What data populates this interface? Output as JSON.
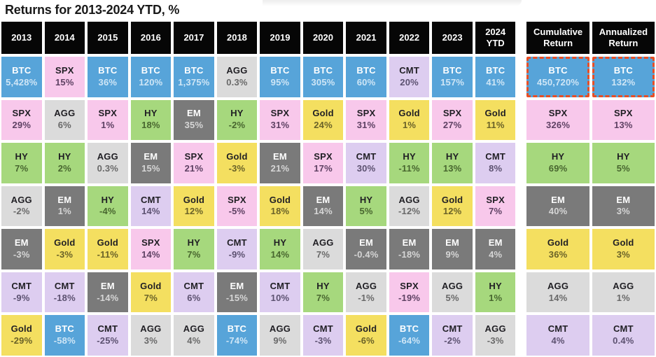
{
  "title": "Returns for 2013-2024 YTD, %",
  "accent": {
    "highlight_border": "#e84e25",
    "header_bg": "#060606",
    "header_text": "#ffffff"
  },
  "assets": {
    "BTC": {
      "bg": "#57a4d9",
      "label_color": "#ffffff",
      "value_color": "#cfe6f6"
    },
    "SPX": {
      "bg": "#f8c8eb",
      "label_color": "#201f24",
      "value_color": "#5e4163"
    },
    "HY": {
      "bg": "#a6d87d",
      "label_color": "#201f24",
      "value_color": "#48662f"
    },
    "AGG": {
      "bg": "#dbdbdb",
      "label_color": "#201f24",
      "value_color": "#696969"
    },
    "EM": {
      "bg": "#7a7a7a",
      "label_color": "#ffffff",
      "value_color": "#d6d6d6"
    },
    "Gold": {
      "bg": "#f4df60",
      "label_color": "#201f24",
      "value_color": "#6a6228"
    },
    "CMT": {
      "bg": "#ddcdf0",
      "label_color": "#201f24",
      "value_color": "#5c5170"
    }
  },
  "chart_data": {
    "type": "table",
    "title": "Returns for 2013-2024 YTD, %",
    "columns": [
      "2013",
      "2014",
      "2015",
      "2016",
      "2017",
      "2018",
      "2019",
      "2020",
      "2021",
      "2022",
      "2023",
      "2024 YTD",
      "Cumulative Return",
      "Annualized Return"
    ],
    "highlight": {
      "row": 0,
      "columns": [
        "Cumulative Return",
        "Annualized Return"
      ],
      "style": "dashed-red-outline"
    },
    "rows": [
      [
        {
          "asset": "BTC",
          "return": "5,428%"
        },
        {
          "asset": "SPX",
          "return": "15%"
        },
        {
          "asset": "BTC",
          "return": "36%"
        },
        {
          "asset": "BTC",
          "return": "120%"
        },
        {
          "asset": "BTC",
          "return": "1,375%"
        },
        {
          "asset": "AGG",
          "return": "0.3%"
        },
        {
          "asset": "BTC",
          "return": "95%"
        },
        {
          "asset": "BTC",
          "return": "305%"
        },
        {
          "asset": "BTC",
          "return": "60%"
        },
        {
          "asset": "CMT",
          "return": "20%"
        },
        {
          "asset": "BTC",
          "return": "157%"
        },
        {
          "asset": "BTC",
          "return": "41%"
        },
        {
          "asset": "BTC",
          "return": "450,720%"
        },
        {
          "asset": "BTC",
          "return": "132%"
        }
      ],
      [
        {
          "asset": "SPX",
          "return": "29%"
        },
        {
          "asset": "AGG",
          "return": "6%"
        },
        {
          "asset": "SPX",
          "return": "1%"
        },
        {
          "asset": "HY",
          "return": "18%"
        },
        {
          "asset": "EM",
          "return": "35%"
        },
        {
          "asset": "HY",
          "return": "-2%"
        },
        {
          "asset": "SPX",
          "return": "31%"
        },
        {
          "asset": "Gold",
          "return": "24%"
        },
        {
          "asset": "SPX",
          "return": "31%"
        },
        {
          "asset": "Gold",
          "return": "1%"
        },
        {
          "asset": "SPX",
          "return": "27%"
        },
        {
          "asset": "Gold",
          "return": "11%"
        },
        {
          "asset": "SPX",
          "return": "326%"
        },
        {
          "asset": "SPX",
          "return": "13%"
        }
      ],
      [
        {
          "asset": "HY",
          "return": "7%"
        },
        {
          "asset": "HY",
          "return": "2%"
        },
        {
          "asset": "AGG",
          "return": "0.3%"
        },
        {
          "asset": "EM",
          "return": "15%"
        },
        {
          "asset": "SPX",
          "return": "21%"
        },
        {
          "asset": "Gold",
          "return": "-3%"
        },
        {
          "asset": "EM",
          "return": "21%"
        },
        {
          "asset": "SPX",
          "return": "17%"
        },
        {
          "asset": "CMT",
          "return": "30%"
        },
        {
          "asset": "HY",
          "return": "-11%"
        },
        {
          "asset": "HY",
          "return": "13%"
        },
        {
          "asset": "CMT",
          "return": "8%"
        },
        {
          "asset": "HY",
          "return": "69%"
        },
        {
          "asset": "HY",
          "return": "5%"
        }
      ],
      [
        {
          "asset": "AGG",
          "return": "-2%"
        },
        {
          "asset": "EM",
          "return": "1%"
        },
        {
          "asset": "HY",
          "return": "-4%"
        },
        {
          "asset": "CMT",
          "return": "14%"
        },
        {
          "asset": "Gold",
          "return": "12%"
        },
        {
          "asset": "SPX",
          "return": "-5%"
        },
        {
          "asset": "Gold",
          "return": "18%"
        },
        {
          "asset": "EM",
          "return": "14%"
        },
        {
          "asset": "HY",
          "return": "5%"
        },
        {
          "asset": "AGG",
          "return": "-12%"
        },
        {
          "asset": "Gold",
          "return": "12%"
        },
        {
          "asset": "SPX",
          "return": "7%"
        },
        {
          "asset": "EM",
          "return": "40%"
        },
        {
          "asset": "EM",
          "return": "3%"
        }
      ],
      [
        {
          "asset": "EM",
          "return": "-3%"
        },
        {
          "asset": "Gold",
          "return": "-3%"
        },
        {
          "asset": "Gold",
          "return": "-11%"
        },
        {
          "asset": "SPX",
          "return": "14%"
        },
        {
          "asset": "HY",
          "return": "7%"
        },
        {
          "asset": "CMT",
          "return": "-9%"
        },
        {
          "asset": "HY",
          "return": "14%"
        },
        {
          "asset": "AGG",
          "return": "7%"
        },
        {
          "asset": "EM",
          "return": "-0.4%"
        },
        {
          "asset": "EM",
          "return": "-18%"
        },
        {
          "asset": "EM",
          "return": "9%"
        },
        {
          "asset": "EM",
          "return": "4%"
        },
        {
          "asset": "Gold",
          "return": "36%"
        },
        {
          "asset": "Gold",
          "return": "3%"
        }
      ],
      [
        {
          "asset": "CMT",
          "return": "-9%"
        },
        {
          "asset": "CMT",
          "return": "-18%"
        },
        {
          "asset": "EM",
          "return": "-14%"
        },
        {
          "asset": "Gold",
          "return": "7%"
        },
        {
          "asset": "CMT",
          "return": "6%"
        },
        {
          "asset": "EM",
          "return": "-15%"
        },
        {
          "asset": "CMT",
          "return": "10%"
        },
        {
          "asset": "HY",
          "return": "7%"
        },
        {
          "asset": "AGG",
          "return": "-1%"
        },
        {
          "asset": "SPX",
          "return": "-19%"
        },
        {
          "asset": "AGG",
          "return": "5%"
        },
        {
          "asset": "HY",
          "return": "1%"
        },
        {
          "asset": "AGG",
          "return": "14%"
        },
        {
          "asset": "AGG",
          "return": "1%"
        }
      ],
      [
        {
          "asset": "Gold",
          "return": "-29%"
        },
        {
          "asset": "BTC",
          "return": "-58%"
        },
        {
          "asset": "CMT",
          "return": "-25%"
        },
        {
          "asset": "AGG",
          "return": "3%"
        },
        {
          "asset": "AGG",
          "return": "4%"
        },
        {
          "asset": "BTC",
          "return": "-74%"
        },
        {
          "asset": "AGG",
          "return": "9%"
        },
        {
          "asset": "CMT",
          "return": "-3%"
        },
        {
          "asset": "Gold",
          "return": "-6%"
        },
        {
          "asset": "BTC",
          "return": "-64%"
        },
        {
          "asset": "CMT",
          "return": "-2%"
        },
        {
          "asset": "AGG",
          "return": "-3%"
        },
        {
          "asset": "CMT",
          "return": "4%"
        },
        {
          "asset": "CMT",
          "return": "0.4%"
        }
      ]
    ]
  }
}
